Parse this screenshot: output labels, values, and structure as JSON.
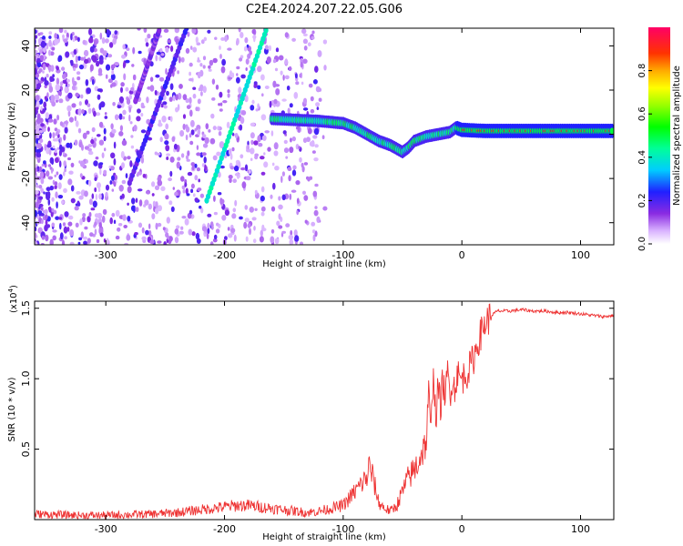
{
  "title": "C2E4.2024.207.22.05.G06",
  "chart_data": [
    {
      "type": "heatmap",
      "xlabel": "Height of straight line (km)",
      "ylabel": "Frequency (Hz)",
      "xlim": [
        -360,
        128
      ],
      "ylim": [
        -50,
        48
      ],
      "xticks": [
        -300,
        -200,
        -100,
        0,
        100
      ],
      "yticks": [
        -40,
        -20,
        0,
        20,
        40
      ],
      "xtick_labels": [
        "-300",
        "-200",
        "-100",
        "0",
        "100"
      ],
      "ytick_labels": [
        "-40",
        "-20",
        "0",
        "20",
        "40"
      ],
      "colorbar": {
        "label": "Normalized spectral amplitude",
        "range": [
          0.0,
          1.0
        ],
        "ticks": [
          0.0,
          0.2,
          0.4,
          0.6,
          0.8
        ],
        "tick_labels": [
          "0.0",
          "0.2",
          "0.4",
          "0.6",
          "0.8"
        ]
      },
      "main_trace": [
        {
          "x": -160,
          "y": 7
        },
        {
          "x": -140,
          "y": 6.5
        },
        {
          "x": -120,
          "y": 6
        },
        {
          "x": -100,
          "y": 5
        },
        {
          "x": -90,
          "y": 3
        },
        {
          "x": -80,
          "y": 0
        },
        {
          "x": -70,
          "y": -3
        },
        {
          "x": -60,
          "y": -5
        },
        {
          "x": -50,
          "y": -8
        },
        {
          "x": -45,
          "y": -6
        },
        {
          "x": -40,
          "y": -3
        },
        {
          "x": -30,
          "y": -1
        },
        {
          "x": -20,
          "y": 0
        },
        {
          "x": -10,
          "y": 1
        },
        {
          "x": -5,
          "y": 3
        },
        {
          "x": 0,
          "y": 2
        },
        {
          "x": 20,
          "y": 1.5
        },
        {
          "x": 50,
          "y": 1.5
        },
        {
          "x": 80,
          "y": 1.5
        },
        {
          "x": 100,
          "y": 1.5
        },
        {
          "x": 128,
          "y": 1.5
        }
      ],
      "streaks": [
        {
          "x1": -215,
          "y1": -30,
          "x2": -165,
          "y2": 47,
          "amplitude": 0.4
        },
        {
          "x1": -280,
          "y1": -22,
          "x2": -232,
          "y2": 48,
          "amplitude": 0.2
        },
        {
          "x1": -275,
          "y1": 15,
          "x2": -255,
          "y2": 47,
          "amplitude": 0.15
        }
      ]
    },
    {
      "type": "line",
      "xlabel": "Height of straight line (km)",
      "ylabel": "SNR (10 * v/v)",
      "y_multiplier": "(x10",
      "y_multiplier_exp": "4",
      "xlim": [
        -360,
        128
      ],
      "ylim": [
        0.0,
        1.55
      ],
      "xticks": [
        -300,
        -200,
        -100,
        0,
        100
      ],
      "yticks": [
        0.5,
        1.0,
        1.5
      ],
      "xtick_labels": [
        "-300",
        "-200",
        "-100",
        "0",
        "100"
      ],
      "ytick_labels": [
        "0.5",
        "1.0",
        "1.5"
      ],
      "series": [
        {
          "name": "SNR",
          "color": "#ee3333",
          "x": [
            -360,
            -340,
            -320,
            -300,
            -280,
            -260,
            -240,
            -220,
            -200,
            -190,
            -180,
            -170,
            -160,
            -150,
            -140,
            -130,
            -120,
            -110,
            -100,
            -95,
            -90,
            -85,
            -80,
            -78,
            -75,
            -70,
            -65,
            -60,
            -55,
            -50,
            -45,
            -40,
            -35,
            -30,
            -28,
            -26,
            -24,
            -22,
            -20,
            -18,
            -16,
            -14,
            -12,
            -10,
            -8,
            -6,
            -4,
            -2,
            0,
            5,
            10,
            15,
            20,
            25,
            30,
            40,
            50,
            60,
            70,
            80,
            90,
            100,
            110,
            120,
            128
          ],
          "values": [
            0.04,
            0.035,
            0.03,
            0.03,
            0.035,
            0.04,
            0.05,
            0.07,
            0.09,
            0.1,
            0.1,
            0.09,
            0.08,
            0.07,
            0.06,
            0.05,
            0.06,
            0.08,
            0.1,
            0.15,
            0.2,
            0.25,
            0.3,
            0.38,
            0.3,
            0.12,
            0.08,
            0.06,
            0.1,
            0.2,
            0.3,
            0.35,
            0.45,
            0.55,
            0.9,
            0.6,
            1.1,
            0.7,
            0.95,
            0.8,
            1.0,
            0.85,
            1.05,
            0.9,
            1.0,
            0.92,
            1.05,
            1.0,
            1.0,
            1.05,
            1.15,
            1.3,
            1.4,
            1.45,
            1.48,
            1.48,
            1.49,
            1.48,
            1.48,
            1.47,
            1.47,
            1.46,
            1.45,
            1.44,
            1.45
          ]
        }
      ]
    }
  ]
}
